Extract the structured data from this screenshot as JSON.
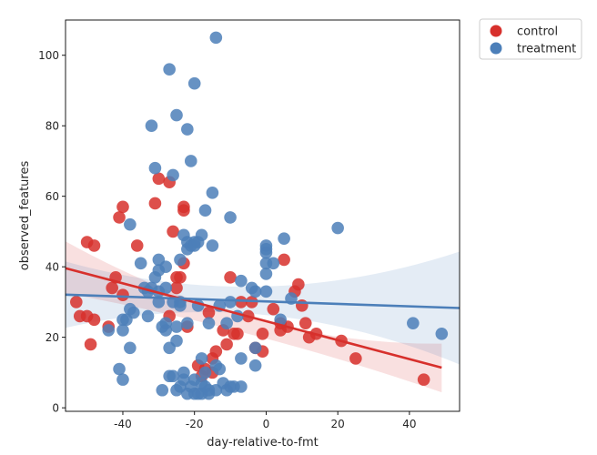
{
  "chart_data": {
    "type": "scatter",
    "title": "",
    "xlabel": "day-relative-to-fmt",
    "ylabel": "observed_features",
    "xlim": [
      -56,
      54
    ],
    "ylim": [
      -1,
      110
    ],
    "xticks": [
      -40,
      -20,
      0,
      20,
      40
    ],
    "yticks": [
      0,
      20,
      40,
      60,
      80,
      100
    ],
    "grid": false,
    "legend_position": "outside-top-right",
    "series": [
      {
        "name": "control",
        "color": "#d7302c",
        "points": [
          [
            -53,
            30
          ],
          [
            -52,
            26
          ],
          [
            -50,
            47
          ],
          [
            -50,
            26
          ],
          [
            -49,
            18
          ],
          [
            -48,
            46
          ],
          [
            -48,
            25
          ],
          [
            -44,
            23
          ],
          [
            -43,
            34
          ],
          [
            -42,
            37
          ],
          [
            -41,
            54
          ],
          [
            -40,
            57
          ],
          [
            -40,
            32
          ],
          [
            -36,
            46
          ],
          [
            -31,
            58
          ],
          [
            -30,
            65
          ],
          [
            -27,
            64
          ],
          [
            -27,
            26
          ],
          [
            -26,
            50
          ],
          [
            -25,
            34
          ],
          [
            -25,
            37
          ],
          [
            -24,
            37
          ],
          [
            -23,
            57
          ],
          [
            -23,
            56
          ],
          [
            -23,
            41
          ],
          [
            -22,
            23
          ],
          [
            -19,
            12
          ],
          [
            -18,
            9
          ],
          [
            -17,
            11
          ],
          [
            -16,
            27
          ],
          [
            -15,
            10
          ],
          [
            -15,
            14
          ],
          [
            -14,
            16
          ],
          [
            -12,
            22
          ],
          [
            -11,
            18
          ],
          [
            -10,
            37
          ],
          [
            -9,
            21
          ],
          [
            -8,
            21
          ],
          [
            -7,
            30
          ],
          [
            -5,
            26
          ],
          [
            -4,
            30
          ],
          [
            -3,
            17
          ],
          [
            -1,
            21
          ],
          [
            -1,
            16
          ],
          [
            2,
            28
          ],
          [
            4,
            22
          ],
          [
            4,
            24
          ],
          [
            5,
            42
          ],
          [
            6,
            23
          ],
          [
            8,
            33
          ],
          [
            9,
            35
          ],
          [
            10,
            29
          ],
          [
            11,
            24
          ],
          [
            12,
            20
          ],
          [
            14,
            21
          ],
          [
            21,
            19
          ],
          [
            25,
            14
          ],
          [
            44,
            8
          ]
        ]
      },
      {
        "name": "treatment",
        "color": "#4c7fb9",
        "points": [
          [
            -44,
            22
          ],
          [
            -41,
            11
          ],
          [
            -40,
            8
          ],
          [
            -40,
            25
          ],
          [
            -40,
            22
          ],
          [
            -39,
            25
          ],
          [
            -38,
            52
          ],
          [
            -38,
            28
          ],
          [
            -38,
            17
          ],
          [
            -37,
            27
          ],
          [
            -35,
            41
          ],
          [
            -34,
            34
          ],
          [
            -33,
            33
          ],
          [
            -33,
            26
          ],
          [
            -32,
            80
          ],
          [
            -32,
            34
          ],
          [
            -31,
            68
          ],
          [
            -31,
            37
          ],
          [
            -30,
            42
          ],
          [
            -30,
            39
          ],
          [
            -30,
            33
          ],
          [
            -30,
            30
          ],
          [
            -29,
            23
          ],
          [
            -29,
            5
          ],
          [
            -28,
            40
          ],
          [
            -28,
            34
          ],
          [
            -28,
            24
          ],
          [
            -28,
            22
          ],
          [
            -27,
            96
          ],
          [
            -27,
            9
          ],
          [
            -27,
            17
          ],
          [
            -26,
            66
          ],
          [
            -26,
            30
          ],
          [
            -26,
            9
          ],
          [
            -25,
            83
          ],
          [
            -25,
            19
          ],
          [
            -25,
            23
          ],
          [
            -25,
            5
          ],
          [
            -24,
            42
          ],
          [
            -24,
            30
          ],
          [
            -24,
            29
          ],
          [
            -24,
            6
          ],
          [
            -23,
            49
          ],
          [
            -23,
            10
          ],
          [
            -23,
            8
          ],
          [
            -22,
            79
          ],
          [
            -22,
            47
          ],
          [
            -22,
            45
          ],
          [
            -22,
            24
          ],
          [
            -22,
            4
          ],
          [
            -21,
            70
          ],
          [
            -21,
            46
          ],
          [
            -21,
            6
          ],
          [
            -20,
            92
          ],
          [
            -20,
            47
          ],
          [
            -20,
            46
          ],
          [
            -20,
            8
          ],
          [
            -20,
            4
          ],
          [
            -19,
            47
          ],
          [
            -19,
            29
          ],
          [
            -19,
            4
          ],
          [
            -18,
            49
          ],
          [
            -18,
            14
          ],
          [
            -18,
            7
          ],
          [
            -18,
            4
          ],
          [
            -17,
            56
          ],
          [
            -17,
            10
          ],
          [
            -17,
            6
          ],
          [
            -16,
            24
          ],
          [
            -16,
            4
          ],
          [
            -16,
            5
          ],
          [
            -15,
            61
          ],
          [
            -15,
            46
          ],
          [
            -14,
            105
          ],
          [
            -14,
            12
          ],
          [
            -14,
            5
          ],
          [
            -13,
            29
          ],
          [
            -13,
            11
          ],
          [
            -12,
            7
          ],
          [
            -11,
            24
          ],
          [
            -11,
            5
          ],
          [
            -10,
            54
          ],
          [
            -10,
            30
          ],
          [
            -10,
            6
          ],
          [
            -9,
            6
          ],
          [
            -8,
            26
          ],
          [
            -7,
            36
          ],
          [
            -7,
            14
          ],
          [
            -7,
            6
          ],
          [
            -4,
            34
          ],
          [
            -3,
            33
          ],
          [
            -3,
            17
          ],
          [
            -3,
            12
          ],
          [
            0,
            46
          ],
          [
            0,
            45
          ],
          [
            0,
            44
          ],
          [
            0,
            41
          ],
          [
            0,
            38
          ],
          [
            0,
            33
          ],
          [
            2,
            41
          ],
          [
            4,
            25
          ],
          [
            5,
            48
          ],
          [
            7,
            31
          ],
          [
            20,
            51
          ],
          [
            41,
            24
          ],
          [
            49,
            21
          ]
        ]
      }
    ],
    "regression": [
      {
        "series": "control",
        "x_range": [
          -56,
          49
        ],
        "y_at_start": 39.6,
        "y_at_end": 11.4,
        "ci_start": [
          32.5,
          47.2
        ],
        "ci_mid": [
          20.6,
          25.2
        ],
        "ci_end": [
          4.4,
          18.2
        ]
      },
      {
        "series": "treatment",
        "x_range": [
          -56,
          54
        ],
        "y_at_start": 32.1,
        "y_at_end": 28.3,
        "ci_start": [
          22.7,
          41.5
        ],
        "ci_mid": [
          26.4,
          34.4
        ],
        "ci_end": [
          12.3,
          44.3
        ]
      }
    ],
    "legend": [
      "control",
      "treatment"
    ]
  }
}
